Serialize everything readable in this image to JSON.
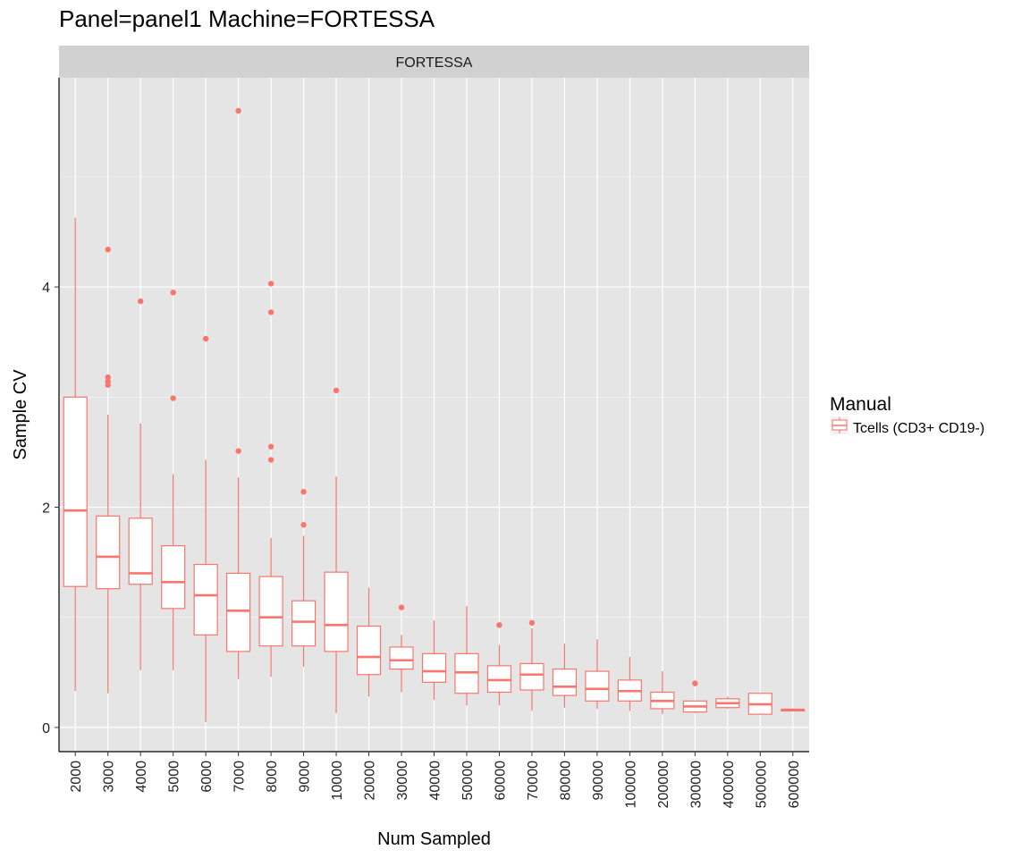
{
  "chart_data": {
    "type": "box",
    "title": "Panel=panel1 Machine=FORTESSA",
    "facet_label": "FORTESSA",
    "xlabel": "Num Sampled",
    "ylabel": "Sample CV",
    "ylim": [
      -0.22,
      5.9
    ],
    "y_ticks": [
      0,
      2,
      4
    ],
    "grid": true,
    "colors": {
      "series": "#f8766d",
      "panel_bg": "#e5e5e5",
      "strip_bg": "#d1d1d1",
      "grid": "#ffffff"
    },
    "legend": {
      "title": "Manual",
      "placement": "right",
      "entries": [
        "Tcells (CD3+ CD19-)"
      ]
    },
    "categories": [
      "2000",
      "3000",
      "4000",
      "5000",
      "6000",
      "7000",
      "8000",
      "9000",
      "10000",
      "20000",
      "30000",
      "40000",
      "50000",
      "60000",
      "70000",
      "80000",
      "90000",
      "100000",
      "200000",
      "300000",
      "400000",
      "500000",
      "600000"
    ],
    "series": [
      {
        "name": "Tcells (CD3+ CD19-)",
        "boxes": [
          {
            "lower_whisker": 0.33,
            "q1": 1.28,
            "median": 1.97,
            "q3": 3.0,
            "upper_whisker": 4.63,
            "outliers": []
          },
          {
            "lower_whisker": 0.31,
            "q1": 1.26,
            "median": 1.55,
            "q3": 1.92,
            "upper_whisker": 2.84,
            "outliers": [
              3.11,
              3.14,
              3.18,
              4.34
            ]
          },
          {
            "lower_whisker": 0.52,
            "q1": 1.3,
            "median": 1.4,
            "q3": 1.9,
            "upper_whisker": 2.76,
            "outliers": [
              3.87
            ]
          },
          {
            "lower_whisker": 0.52,
            "q1": 1.08,
            "median": 1.32,
            "q3": 1.65,
            "upper_whisker": 2.3,
            "outliers": [
              2.99,
              3.95
            ]
          },
          {
            "lower_whisker": 0.05,
            "q1": 0.84,
            "median": 1.2,
            "q3": 1.48,
            "upper_whisker": 2.43,
            "outliers": [
              3.53
            ]
          },
          {
            "lower_whisker": 0.44,
            "q1": 0.69,
            "median": 1.06,
            "q3": 1.4,
            "upper_whisker": 2.27,
            "outliers": [
              2.51,
              5.6
            ]
          },
          {
            "lower_whisker": 0.46,
            "q1": 0.74,
            "median": 1.0,
            "q3": 1.37,
            "upper_whisker": 1.72,
            "outliers": [
              2.43,
              2.55,
              3.77,
              4.03
            ]
          },
          {
            "lower_whisker": 0.55,
            "q1": 0.74,
            "median": 0.96,
            "q3": 1.15,
            "upper_whisker": 1.74,
            "outliers": [
              1.84,
              2.14
            ]
          },
          {
            "lower_whisker": 0.13,
            "q1": 0.69,
            "median": 0.93,
            "q3": 1.41,
            "upper_whisker": 2.28,
            "outliers": [
              3.06
            ]
          },
          {
            "lower_whisker": 0.28,
            "q1": 0.48,
            "median": 0.64,
            "q3": 0.92,
            "upper_whisker": 1.27,
            "outliers": []
          },
          {
            "lower_whisker": 0.32,
            "q1": 0.53,
            "median": 0.61,
            "q3": 0.73,
            "upper_whisker": 0.84,
            "outliers": [
              1.09
            ]
          },
          {
            "lower_whisker": 0.25,
            "q1": 0.41,
            "median": 0.51,
            "q3": 0.67,
            "upper_whisker": 0.97,
            "outliers": []
          },
          {
            "lower_whisker": 0.2,
            "q1": 0.31,
            "median": 0.5,
            "q3": 0.67,
            "upper_whisker": 1.1,
            "outliers": []
          },
          {
            "lower_whisker": 0.2,
            "q1": 0.32,
            "median": 0.43,
            "q3": 0.56,
            "upper_whisker": 0.75,
            "outliers": [
              0.93
            ]
          },
          {
            "lower_whisker": 0.15,
            "q1": 0.34,
            "median": 0.48,
            "q3": 0.58,
            "upper_whisker": 0.9,
            "outliers": [
              0.95
            ]
          },
          {
            "lower_whisker": 0.18,
            "q1": 0.29,
            "median": 0.37,
            "q3": 0.53,
            "upper_whisker": 0.76,
            "outliers": []
          },
          {
            "lower_whisker": 0.17,
            "q1": 0.24,
            "median": 0.35,
            "q3": 0.51,
            "upper_whisker": 0.8,
            "outliers": []
          },
          {
            "lower_whisker": 0.15,
            "q1": 0.24,
            "median": 0.33,
            "q3": 0.43,
            "upper_whisker": 0.64,
            "outliers": []
          },
          {
            "lower_whisker": 0.12,
            "q1": 0.17,
            "median": 0.24,
            "q3": 0.32,
            "upper_whisker": 0.51,
            "outliers": []
          },
          {
            "lower_whisker": 0.13,
            "q1": 0.14,
            "median": 0.19,
            "q3": 0.24,
            "upper_whisker": 0.24,
            "outliers": [
              0.4
            ]
          },
          {
            "lower_whisker": 0.17,
            "q1": 0.18,
            "median": 0.22,
            "q3": 0.26,
            "upper_whisker": 0.28,
            "outliers": []
          },
          {
            "lower_whisker": 0.12,
            "q1": 0.12,
            "median": 0.21,
            "q3": 0.31,
            "upper_whisker": 0.31,
            "outliers": []
          },
          {
            "lower_whisker": 0.15,
            "q1": 0.15,
            "median": 0.16,
            "q3": 0.16,
            "upper_whisker": 0.16,
            "outliers": []
          }
        ]
      }
    ]
  }
}
